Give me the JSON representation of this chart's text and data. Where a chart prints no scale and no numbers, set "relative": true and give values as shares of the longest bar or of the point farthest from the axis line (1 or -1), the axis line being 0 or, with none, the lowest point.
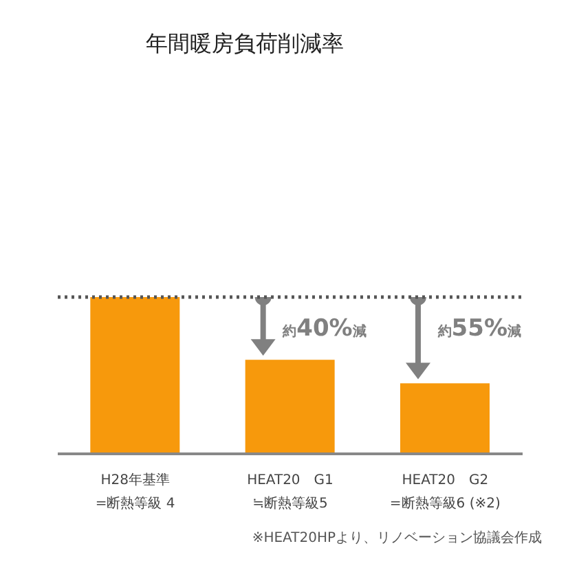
{
  "chart_data": {
    "type": "bar",
    "title": "年間暖房負荷削減率",
    "relative": true,
    "categories": [
      "H28年基準\n=断熱等級 4",
      "HEAT20　G1\n≒断熱等級5",
      "HEAT20　G2\n=断熱等級6 (※2)"
    ],
    "values": [
      1,
      0.6,
      0.45
    ],
    "color": "#f7990c",
    "ref_lines": [
      {
        "axis": "y",
        "value": 1,
        "color": "#555555",
        "line_style": "dotted"
      }
    ],
    "annotations": [
      {
        "text": "約40%減",
        "x": "HEAT20　G1\n≒断熱等級5",
        "y": 0.6
      },
      {
        "text": "約55%減",
        "x": "HEAT20　G2\n=断熱等級6 (※2)",
        "y": 0.45
      },
      "※HEAT20HPより、リノベーション協議会作成"
    ]
  }
}
